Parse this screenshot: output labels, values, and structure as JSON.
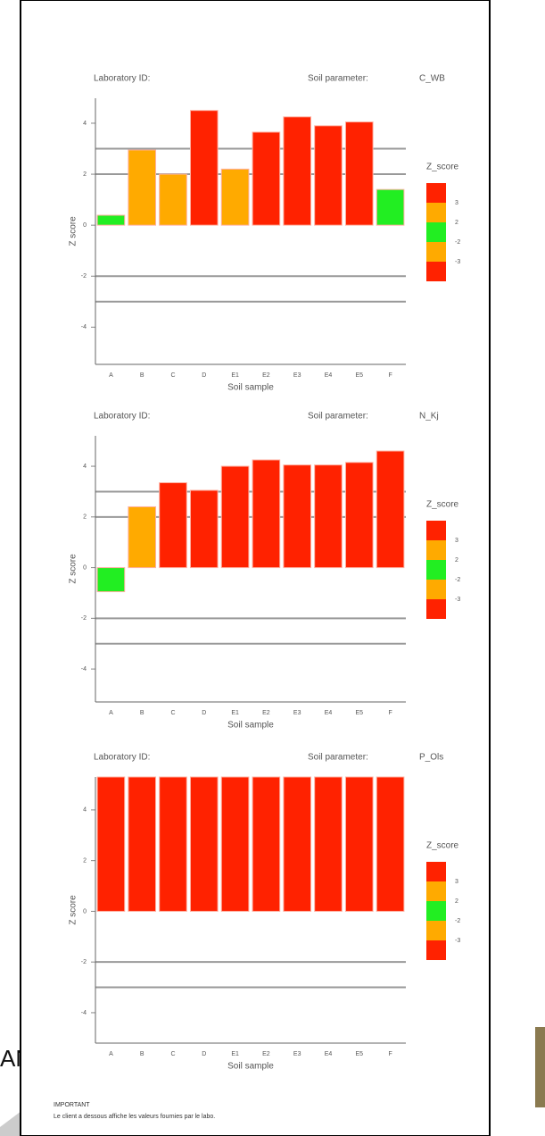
{
  "background_text": "AN",
  "footer": {
    "title": "IMPORTANT",
    "text": "Le client a dessous affiche les valeurs fournies par le labo."
  },
  "chart_data": [
    {
      "type": "bar",
      "lab_label": "Laboratory ID:",
      "param_label": "Soil parameter:",
      "param": "C_WB",
      "x_label": "Soil sample",
      "y_label": "Z score",
      "categories": [
        "A",
        "B",
        "C",
        "D",
        "E1",
        "E2",
        "E3",
        "E4",
        "E5",
        "F"
      ],
      "values": [
        0.39,
        2.95,
        2.0,
        4.5,
        2.2,
        3.65,
        4.25,
        3.9,
        4.05,
        1.4
      ],
      "bar_colors": [
        "#22ee22",
        "#ffaa00",
        "#ffaa00",
        "#ff2200",
        "#ffaa00",
        "#ff2200",
        "#ff2200",
        "#ff2200",
        "#ff2200",
        "#22ee22"
      ],
      "ylim": [
        -5.46,
        4.98
      ],
      "yticks": [
        4,
        2,
        0,
        -2,
        -4
      ],
      "hlines": [
        3,
        2,
        -2,
        -3
      ],
      "legend": {
        "title": "Z_score",
        "colors": [
          "#ff2200",
          "#ffaa00",
          "#22ee22",
          "#ffaa00",
          "#ff2200"
        ],
        "labels": [
          "3",
          "2",
          "-2",
          "-3"
        ]
      }
    },
    {
      "type": "bar",
      "lab_label": "Laboratory ID:",
      "param_label": "Soil parameter:",
      "param": "N_Kj",
      "x_label": "Soil sample",
      "y_label": "Z score",
      "categories": [
        "A",
        "B",
        "C",
        "D",
        "E1",
        "E2",
        "E3",
        "E4",
        "E5",
        "F"
      ],
      "values": [
        -0.95,
        2.4,
        3.35,
        3.05,
        4.0,
        4.25,
        4.05,
        4.05,
        4.15,
        4.6
      ],
      "bar_colors": [
        "#22ee22",
        "#ffaa00",
        "#ff2200",
        "#ff2200",
        "#ff2200",
        "#ff2200",
        "#ff2200",
        "#ff2200",
        "#ff2200",
        "#ff2200"
      ],
      "ylim": [
        -5.3,
        5.2
      ],
      "yticks": [
        4,
        2,
        0,
        -2,
        -4
      ],
      "hlines": [
        3,
        2,
        -2,
        -3
      ],
      "legend": {
        "title": "Z_score",
        "colors": [
          "#ff2200",
          "#ffaa00",
          "#22ee22",
          "#ffaa00",
          "#ff2200"
        ],
        "labels": [
          "3",
          "2",
          "-2",
          "-3"
        ]
      }
    },
    {
      "type": "bar",
      "lab_label": "Laboratory ID:",
      "param_label": "Soil parameter:",
      "param": "P_Ols",
      "x_label": "Soil sample",
      "y_label": "Z score",
      "categories": [
        "A",
        "B",
        "C",
        "D",
        "E1",
        "E2",
        "E3",
        "E4",
        "E5",
        "F"
      ],
      "values": [
        5.3,
        5.3,
        5.3,
        5.3,
        5.3,
        5.3,
        5.3,
        5.3,
        5.3,
        5.3
      ],
      "bar_colors": [
        "#ff2200",
        "#ff2200",
        "#ff2200",
        "#ff2200",
        "#ff2200",
        "#ff2200",
        "#ff2200",
        "#ff2200",
        "#ff2200",
        "#ff2200"
      ],
      "ylim": [
        -5.2,
        5.3
      ],
      "yticks": [
        4,
        2,
        0,
        -2,
        -4
      ],
      "hlines": [
        -2,
        -3
      ],
      "legend": {
        "title": "Z_score",
        "colors": [
          "#ff2200",
          "#ffaa00",
          "#22ee22",
          "#ffaa00",
          "#ff2200"
        ],
        "labels": [
          "3",
          "2",
          "-2",
          "-3"
        ]
      }
    }
  ]
}
